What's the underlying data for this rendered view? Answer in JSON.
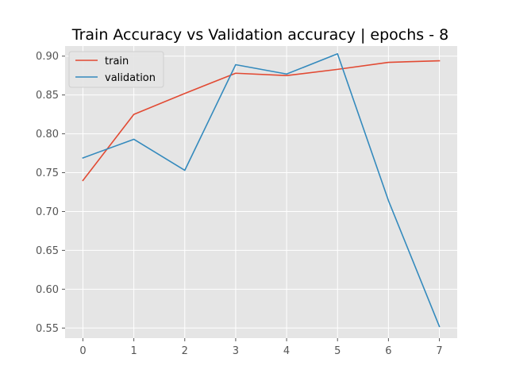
{
  "chart_data": {
    "type": "line",
    "title": "Train Accuracy vs Validation accuracy | epochs - 8",
    "xlabel": "",
    "ylabel": "",
    "x": [
      0,
      1,
      2,
      3,
      4,
      5,
      6,
      7
    ],
    "xlim": [
      -0.35,
      7.35
    ],
    "ylim": [
      0.537,
      0.913
    ],
    "xticks": [
      0,
      1,
      2,
      3,
      4,
      5,
      6,
      7
    ],
    "yticks": [
      0.55,
      0.6,
      0.65,
      0.7,
      0.75,
      0.8,
      0.85,
      0.9
    ],
    "ytick_labels": [
      "0.55",
      "0.60",
      "0.65",
      "0.70",
      "0.75",
      "0.80",
      "0.85",
      "0.90"
    ],
    "grid": true,
    "legend_position": "top-left",
    "series": [
      {
        "name": "train",
        "color": "#E24A33",
        "values": [
          0.74,
          0.825,
          0.852,
          0.878,
          0.875,
          0.883,
          0.892,
          0.894
        ]
      },
      {
        "name": "validation",
        "color": "#348ABD",
        "values": [
          0.769,
          0.793,
          0.753,
          0.889,
          0.877,
          0.903,
          0.714,
          0.552
        ]
      }
    ]
  }
}
